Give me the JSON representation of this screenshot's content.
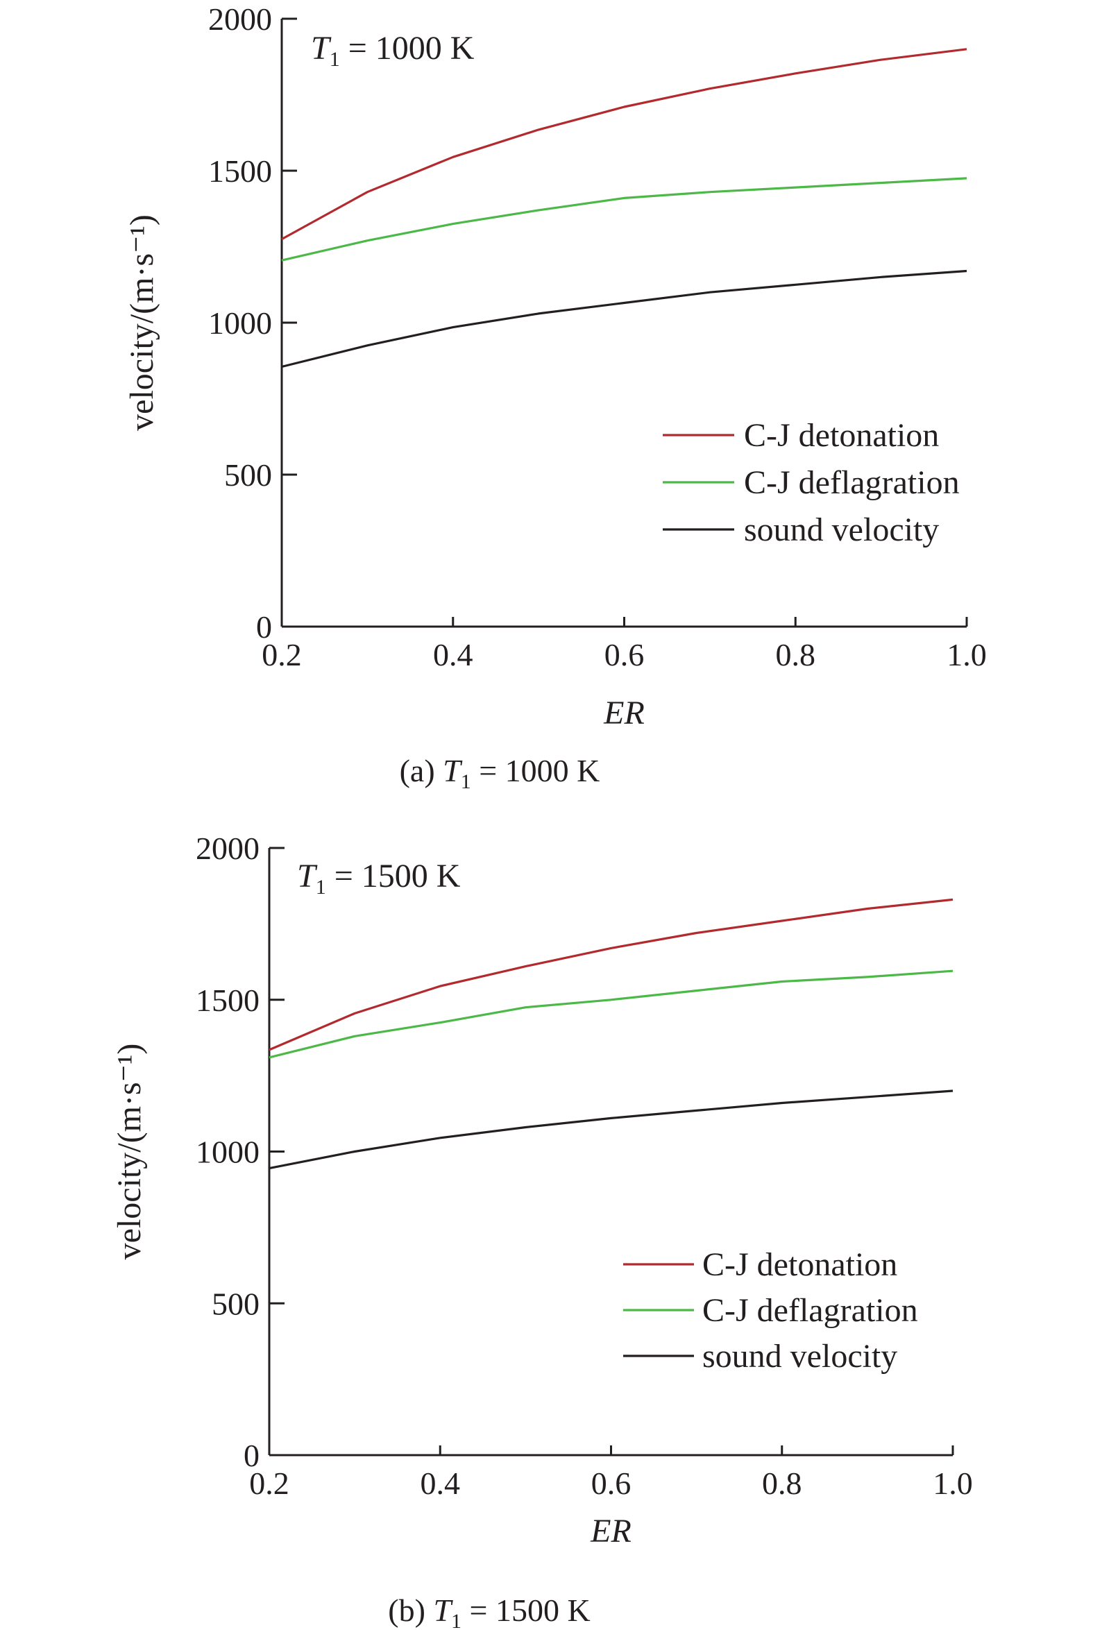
{
  "chart_data": [
    {
      "type": "line",
      "annotation": {
        "variable": "T",
        "subscript": "1",
        "rest": " = 1000 K"
      },
      "caption": {
        "prefix": "(a) ",
        "variable": "T",
        "subscript": "1",
        "rest": " = 1000 K"
      },
      "xlabel": "ER",
      "ylabel": "velocity/(m·s⁻¹)",
      "xlim": [
        0.2,
        1.0
      ],
      "ylim": [
        0,
        2000
      ],
      "xticks": [
        "0.2",
        "0.4",
        "0.6",
        "0.8",
        "1.0"
      ],
      "yticks": [
        "0",
        "500",
        "1000",
        "1500",
        "2000"
      ],
      "grid": false,
      "legend_position": "lower-right",
      "x": [
        0.2,
        0.3,
        0.4,
        0.5,
        0.6,
        0.7,
        0.8,
        0.9,
        1.0
      ],
      "series": [
        {
          "name": "C-J detonation",
          "color": "#b22a2e",
          "values": [
            1275,
            1430,
            1545,
            1635,
            1710,
            1770,
            1820,
            1865,
            1900
          ]
        },
        {
          "name": "C-J deflagration",
          "color": "#4cb848",
          "values": [
            1205,
            1270,
            1325,
            1370,
            1410,
            1430,
            1445,
            1460,
            1475
          ]
        },
        {
          "name": "sound velocity",
          "color": "#231f20",
          "values": [
            855,
            925,
            985,
            1030,
            1065,
            1100,
            1125,
            1150,
            1170
          ]
        }
      ]
    },
    {
      "type": "line",
      "annotation": {
        "variable": "T",
        "subscript": "1",
        "rest": " = 1500 K"
      },
      "caption": {
        "prefix": "(b) ",
        "variable": "T",
        "subscript": "1",
        "rest": " = 1500 K"
      },
      "xlabel": "ER",
      "ylabel": "velocity/(m·s⁻¹)",
      "xlim": [
        0.2,
        1.0
      ],
      "ylim": [
        0,
        2000
      ],
      "xticks": [
        "0.2",
        "0.4",
        "0.6",
        "0.8",
        "1.0"
      ],
      "yticks": [
        "0",
        "500",
        "1000",
        "1500",
        "2000"
      ],
      "grid": false,
      "legend_position": "lower-right",
      "x": [
        0.2,
        0.3,
        0.4,
        0.5,
        0.6,
        0.7,
        0.8,
        0.9,
        1.0
      ],
      "series": [
        {
          "name": "C-J detonation",
          "color": "#b22a2e",
          "values": [
            1335,
            1455,
            1545,
            1610,
            1670,
            1720,
            1760,
            1800,
            1830
          ]
        },
        {
          "name": "C-J deflagration",
          "color": "#4cb848",
          "values": [
            1310,
            1380,
            1425,
            1475,
            1500,
            1530,
            1560,
            1575,
            1595
          ]
        },
        {
          "name": "sound velocity",
          "color": "#231f20",
          "values": [
            945,
            1000,
            1045,
            1080,
            1110,
            1135,
            1160,
            1180,
            1200
          ]
        }
      ]
    }
  ]
}
